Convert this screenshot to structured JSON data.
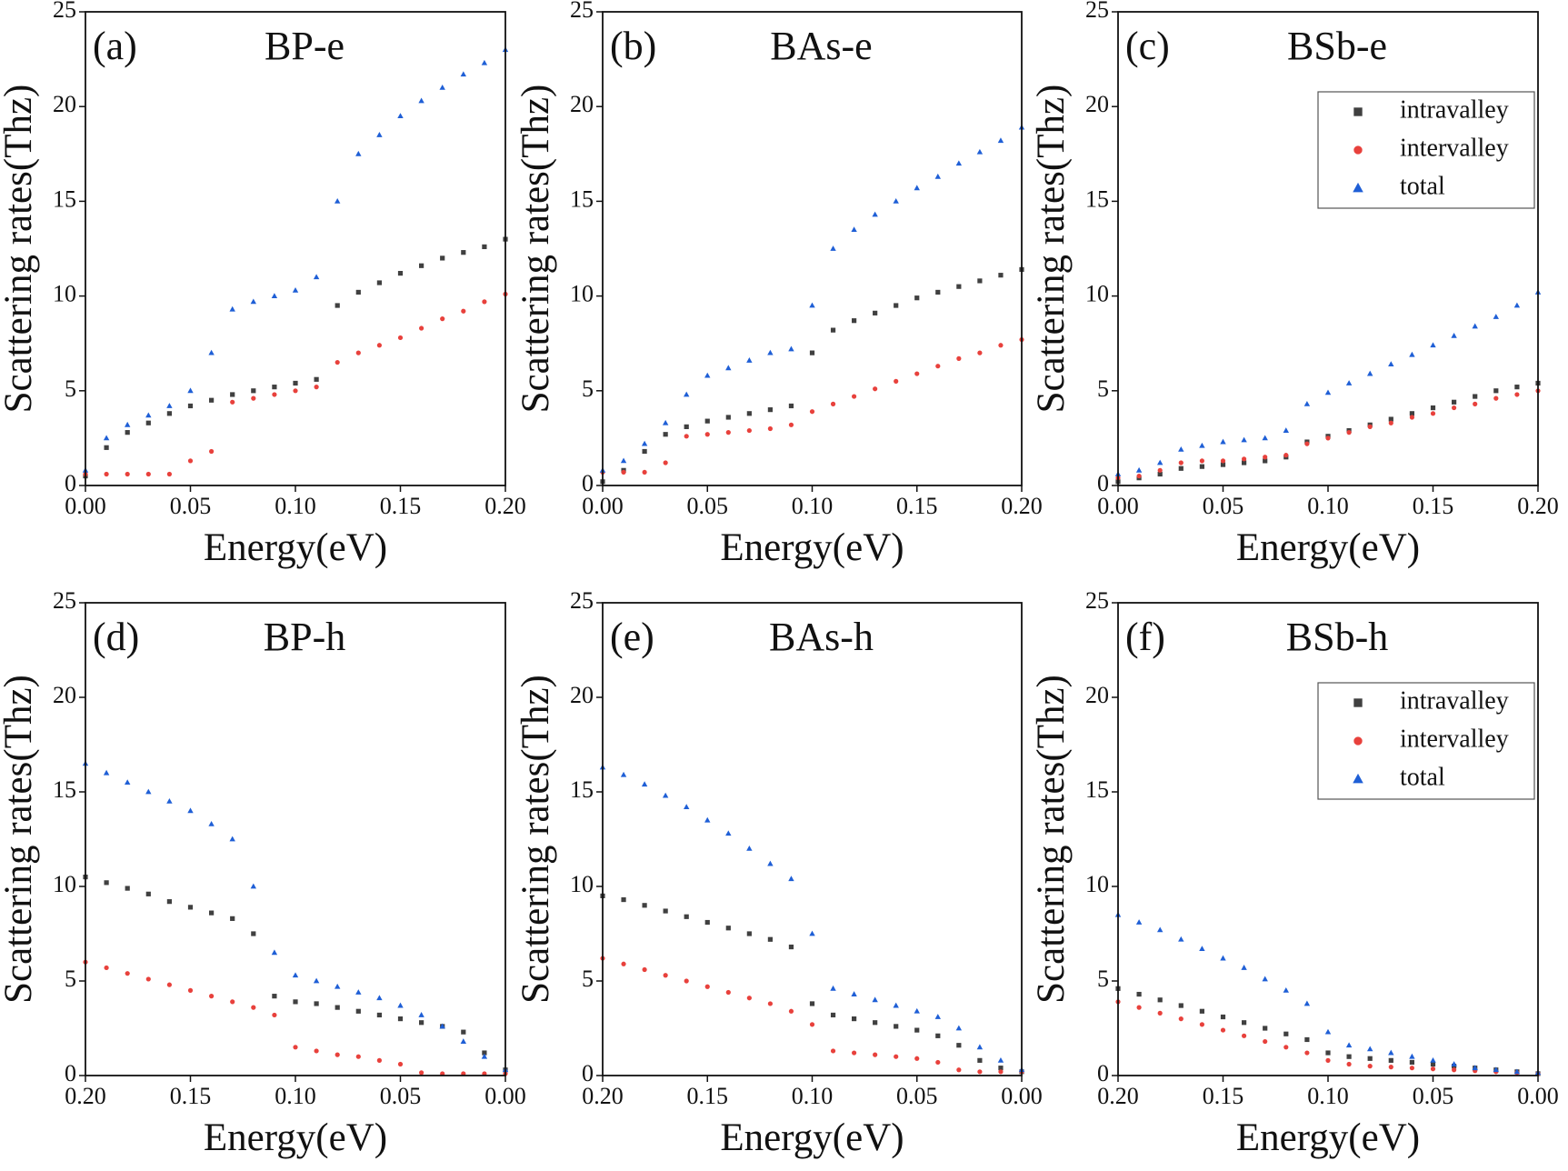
{
  "chart_data": [
    {
      "type": "scatter",
      "panel_label": "(a)",
      "title": "BP-e",
      "xlabel": "Energy(eV)",
      "ylabel": "Scattering rates(Thz)",
      "xlim": [
        0,
        0.2
      ],
      "ylim": [
        0,
        25
      ],
      "xticks": [
        {
          "value": 0,
          "label": "0.00"
        },
        0.05,
        {
          "value": 0.1,
          "label": "0.10"
        },
        0.15,
        {
          "value": 0.2,
          "label": "0.20"
        }
      ],
      "yticks": [
        0,
        5,
        10,
        15,
        20,
        25
      ],
      "x": [
        0,
        0.01,
        0.02,
        0.03,
        0.04,
        0.05,
        0.06,
        0.07,
        0.08,
        0.09,
        0.1,
        0.11,
        0.12,
        0.13,
        0.14,
        0.15,
        0.16,
        0.17,
        0.18,
        0.19,
        0.2
      ],
      "series": [
        {
          "color": "#404040",
          "marker": "square",
          "values": [
            0.5,
            2,
            2.8,
            3.3,
            3.8,
            4.2,
            4.5,
            4.8,
            5,
            5.2,
            5.4,
            5.6,
            9.5,
            10.2,
            10.7,
            11.2,
            11.6,
            12,
            12.3,
            12.6,
            13
          ]
        },
        {
          "color": "#e8413c",
          "marker": "circle",
          "values": [
            0.6,
            0.6,
            0.6,
            0.6,
            0.6,
            1.3,
            1.8,
            4.4,
            4.6,
            4.8,
            5,
            5.2,
            6.5,
            7,
            7.4,
            7.8,
            8.3,
            8.8,
            9.2,
            9.7,
            10.1
          ]
        },
        {
          "color": "#1f5fd6",
          "marker": "triangle",
          "values": [
            0.8,
            2.5,
            3.2,
            3.7,
            4.2,
            5,
            7,
            9.3,
            9.7,
            10,
            10.3,
            11,
            15,
            17.5,
            18.5,
            19.5,
            20.3,
            21,
            21.7,
            22.3,
            23
          ]
        }
      ]
    },
    {
      "type": "scatter",
      "panel_label": "(b)",
      "title": "BAs-e",
      "xlabel": "Energy(eV)",
      "ylabel": "Scattering rates(Thz)",
      "xlim": [
        0,
        0.2
      ],
      "ylim": [
        0,
        25
      ],
      "xticks": [
        {
          "value": 0,
          "label": "0.00"
        },
        0.05,
        {
          "value": 0.1,
          "label": "0.10"
        },
        0.15,
        {
          "value": 0.2,
          "label": "0.20"
        }
      ],
      "yticks": [
        0,
        5,
        10,
        15,
        20,
        25
      ],
      "x": [
        0,
        0.01,
        0.02,
        0.03,
        0.04,
        0.05,
        0.06,
        0.07,
        0.08,
        0.09,
        0.1,
        0.11,
        0.12,
        0.13,
        0.14,
        0.15,
        0.16,
        0.17,
        0.18,
        0.19,
        0.2
      ],
      "series": [
        {
          "color": "#404040",
          "marker": "square",
          "values": [
            0.2,
            0.8,
            1.8,
            2.7,
            3.1,
            3.4,
            3.6,
            3.8,
            4,
            4.2,
            7,
            8.2,
            8.7,
            9.1,
            9.5,
            9.9,
            10.2,
            10.5,
            10.8,
            11.1,
            11.4
          ]
        },
        {
          "color": "#e8413c",
          "marker": "circle",
          "values": [
            0.7,
            0.7,
            0.7,
            1.2,
            2.6,
            2.7,
            2.8,
            2.9,
            3,
            3.2,
            3.9,
            4.3,
            4.7,
            5.1,
            5.5,
            5.9,
            6.3,
            6.7,
            7,
            7.4,
            7.7
          ]
        },
        {
          "color": "#1f5fd6",
          "marker": "triangle",
          "values": [
            0.8,
            1.3,
            2.2,
            3.3,
            4.8,
            5.8,
            6.2,
            6.6,
            7,
            7.2,
            9.5,
            12.5,
            13.5,
            14.3,
            15,
            15.7,
            16.3,
            17,
            17.6,
            18.2,
            18.9
          ]
        }
      ]
    },
    {
      "type": "scatter",
      "panel_label": "(c)",
      "title": "BSb-e",
      "xlabel": "Energy(eV)",
      "ylabel": "Scattering rates(Thz)",
      "xlim": [
        0,
        0.2
      ],
      "ylim": [
        0,
        25
      ],
      "legend": "upper right",
      "xticks": [
        {
          "value": 0,
          "label": "0.00"
        },
        0.05,
        {
          "value": 0.1,
          "label": "0.10"
        },
        0.15,
        {
          "value": 0.2,
          "label": "0.20"
        }
      ],
      "yticks": [
        0,
        5,
        10,
        15,
        20,
        25
      ],
      "x": [
        0,
        0.01,
        0.02,
        0.03,
        0.04,
        0.05,
        0.06,
        0.07,
        0.08,
        0.09,
        0.1,
        0.11,
        0.12,
        0.13,
        0.14,
        0.15,
        0.16,
        0.17,
        0.18,
        0.19,
        0.2
      ],
      "series": [
        {
          "name": "intravalley",
          "color": "#404040",
          "marker": "square",
          "values": [
            0.2,
            0.4,
            0.6,
            0.9,
            1,
            1.1,
            1.2,
            1.3,
            1.5,
            2.3,
            2.6,
            2.9,
            3.2,
            3.5,
            3.8,
            4.1,
            4.4,
            4.7,
            5,
            5.2,
            5.4
          ]
        },
        {
          "name": "intervalley",
          "color": "#e8413c",
          "marker": "circle",
          "values": [
            0.4,
            0.5,
            0.8,
            1.2,
            1.3,
            1.3,
            1.4,
            1.5,
            1.6,
            2.2,
            2.5,
            2.8,
            3.1,
            3.3,
            3.6,
            3.8,
            4.1,
            4.3,
            4.6,
            4.8,
            5
          ]
        },
        {
          "name": "total",
          "color": "#1f5fd6",
          "marker": "triangle",
          "values": [
            0.6,
            0.8,
            1.2,
            1.9,
            2.1,
            2.3,
            2.4,
            2.5,
            2.9,
            4.3,
            4.9,
            5.4,
            5.9,
            6.4,
            6.9,
            7.4,
            7.9,
            8.4,
            8.9,
            9.5,
            10.2
          ]
        }
      ]
    },
    {
      "type": "scatter",
      "panel_label": "(d)",
      "title": "BP-h",
      "xlabel": "Energy(eV)",
      "ylabel": "Scattering rates(Thz)",
      "xlim": [
        0.2,
        0
      ],
      "ylim": [
        0,
        25
      ],
      "xticks": [
        {
          "value": 0.2,
          "label": "0.20"
        },
        0.15,
        {
          "value": 0.1,
          "label": "0.10"
        },
        0.05,
        {
          "value": 0,
          "label": "0.00"
        }
      ],
      "yticks": [
        0,
        5,
        10,
        15,
        20,
        25
      ],
      "x": [
        0.2,
        0.19,
        0.18,
        0.17,
        0.16,
        0.15,
        0.14,
        0.13,
        0.12,
        0.11,
        0.1,
        0.09,
        0.08,
        0.07,
        0.06,
        0.05,
        0.04,
        0.03,
        0.02,
        0.01,
        0
      ],
      "series": [
        {
          "color": "#404040",
          "marker": "square",
          "values": [
            10.5,
            10.2,
            9.9,
            9.6,
            9.2,
            8.9,
            8.6,
            8.3,
            7.5,
            4.2,
            3.9,
            3.8,
            3.6,
            3.4,
            3.2,
            3,
            2.8,
            2.6,
            2.3,
            1.2,
            0.3
          ]
        },
        {
          "color": "#e8413c",
          "marker": "circle",
          "values": [
            6,
            5.7,
            5.4,
            5.1,
            4.8,
            4.5,
            4.2,
            3.9,
            3.6,
            3.2,
            1.5,
            1.3,
            1.1,
            1,
            0.8,
            0.6,
            0.15,
            0.1,
            0.1,
            0.1,
            0.1
          ]
        },
        {
          "color": "#1f5fd6",
          "marker": "triangle",
          "values": [
            16.5,
            16,
            15.5,
            15,
            14.5,
            14,
            13.3,
            12.5,
            10,
            6.5,
            5.3,
            5,
            4.7,
            4.4,
            4.1,
            3.7,
            3.2,
            2.6,
            1.8,
            1,
            0.3
          ]
        }
      ]
    },
    {
      "type": "scatter",
      "panel_label": "(e)",
      "title": "BAs-h",
      "xlabel": "Energy(eV)",
      "ylabel": "Scattering rates(Thz)",
      "xlim": [
        0.2,
        0
      ],
      "ylim": [
        0,
        25
      ],
      "xticks": [
        {
          "value": 0.2,
          "label": "0.20"
        },
        0.15,
        {
          "value": 0.1,
          "label": "0.10"
        },
        0.05,
        {
          "value": 0,
          "label": "0.00"
        }
      ],
      "yticks": [
        0,
        5,
        10,
        15,
        20,
        25
      ],
      "x": [
        0.2,
        0.19,
        0.18,
        0.17,
        0.16,
        0.15,
        0.14,
        0.13,
        0.12,
        0.11,
        0.1,
        0.09,
        0.08,
        0.07,
        0.06,
        0.05,
        0.04,
        0.03,
        0.02,
        0.01,
        0
      ],
      "series": [
        {
          "color": "#404040",
          "marker": "square",
          "values": [
            9.5,
            9.3,
            9,
            8.7,
            8.4,
            8.1,
            7.8,
            7.5,
            7.2,
            6.8,
            3.8,
            3.2,
            3,
            2.8,
            2.6,
            2.4,
            2.1,
            1.6,
            0.8,
            0.4,
            0.2
          ]
        },
        {
          "color": "#e8413c",
          "marker": "circle",
          "values": [
            6.2,
            5.9,
            5.6,
            5.3,
            5,
            4.7,
            4.4,
            4.1,
            3.8,
            3.4,
            2.7,
            1.3,
            1.2,
            1.1,
            1,
            0.9,
            0.7,
            0.3,
            0.2,
            0.2,
            0.2
          ]
        },
        {
          "color": "#1f5fd6",
          "marker": "triangle",
          "values": [
            16.3,
            15.9,
            15.4,
            14.8,
            14.2,
            13.5,
            12.8,
            12,
            11.2,
            10.4,
            7.5,
            4.6,
            4.3,
            4,
            3.7,
            3.4,
            3.1,
            2.5,
            1.5,
            0.8,
            0.3
          ]
        }
      ]
    },
    {
      "type": "scatter",
      "panel_label": "(f)",
      "title": "BSb-h",
      "xlabel": "Energy(eV)",
      "ylabel": "Scattering rates(Thz)",
      "xlim": [
        0.2,
        0
      ],
      "ylim": [
        0,
        25
      ],
      "legend": "upper right",
      "xticks": [
        {
          "value": 0.2,
          "label": "0.20"
        },
        0.15,
        {
          "value": 0.1,
          "label": "0.10"
        },
        0.05,
        {
          "value": 0,
          "label": "0.00"
        }
      ],
      "yticks": [
        0,
        5,
        10,
        15,
        20,
        25
      ],
      "x": [
        0.2,
        0.19,
        0.18,
        0.17,
        0.16,
        0.15,
        0.14,
        0.13,
        0.12,
        0.11,
        0.1,
        0.09,
        0.08,
        0.07,
        0.06,
        0.05,
        0.04,
        0.03,
        0.02,
        0.01,
        0
      ],
      "series": [
        {
          "name": "intravalley",
          "color": "#404040",
          "marker": "square",
          "values": [
            4.6,
            4.3,
            4,
            3.7,
            3.4,
            3.1,
            2.8,
            2.5,
            2.2,
            1.9,
            1.2,
            1,
            0.9,
            0.8,
            0.7,
            0.6,
            0.5,
            0.4,
            0.3,
            0.2,
            0.1
          ]
        },
        {
          "name": "intervalley",
          "color": "#e8413c",
          "marker": "circle",
          "values": [
            3.9,
            3.6,
            3.3,
            3,
            2.7,
            2.4,
            2.1,
            1.8,
            1.5,
            1.2,
            0.8,
            0.6,
            0.5,
            0.45,
            0.4,
            0.35,
            0.3,
            0.25,
            0.2,
            0.15,
            0.1
          ]
        },
        {
          "name": "total",
          "color": "#1f5fd6",
          "marker": "triangle",
          "values": [
            8.5,
            8.1,
            7.7,
            7.2,
            6.7,
            6.2,
            5.7,
            5.1,
            4.5,
            3.8,
            2.3,
            1.6,
            1.4,
            1.2,
            1,
            0.8,
            0.6,
            0.4,
            0.3,
            0.2,
            0.15
          ]
        }
      ]
    }
  ]
}
